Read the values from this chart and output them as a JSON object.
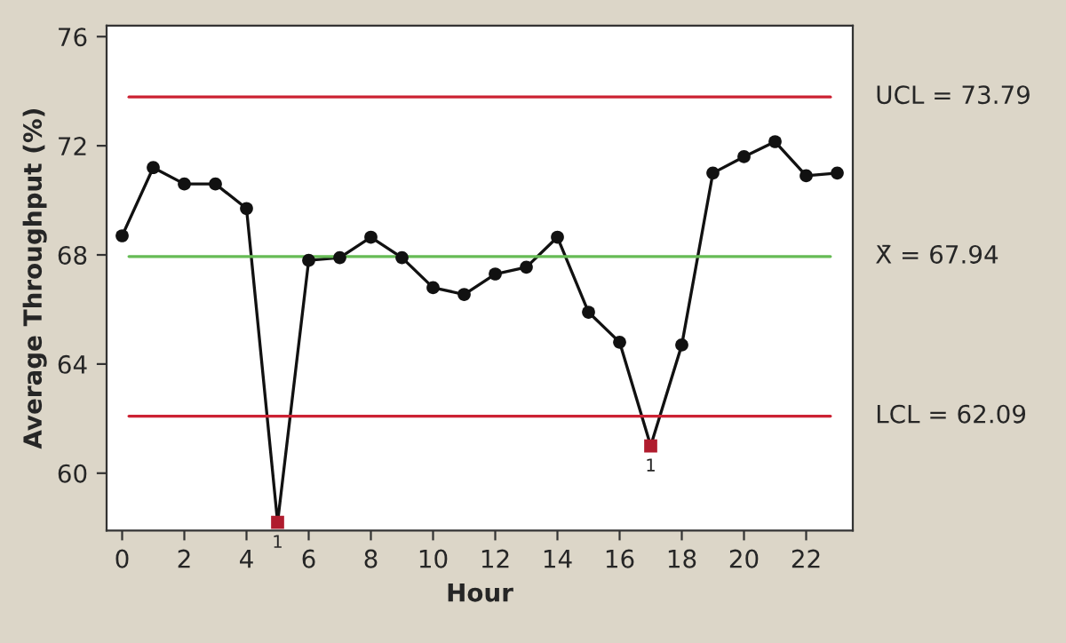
{
  "chart_data": {
    "type": "line",
    "xlabel": "Hour",
    "ylabel": "Average Throughput (%)",
    "x": [
      0,
      1,
      2,
      3,
      4,
      5,
      6,
      7,
      8,
      9,
      10,
      11,
      12,
      13,
      14,
      15,
      16,
      17,
      18,
      19,
      20,
      21,
      22,
      23
    ],
    "series": [
      {
        "color": "#111111",
        "values": [
          68.7,
          71.2,
          70.6,
          70.6,
          69.7,
          58.2,
          67.8,
          67.9,
          68.65,
          67.9,
          66.8,
          66.55,
          67.3,
          67.55,
          68.65,
          65.9,
          64.8,
          61.0,
          64.7,
          71.0,
          71.6,
          72.15,
          70.9,
          71.0
        ],
        "colors": [
          "#111111",
          "#111111",
          "#111111",
          "#111111",
          "#111111",
          "#b01c2e",
          "#111111",
          "#111111",
          "#111111",
          "#111111",
          "#111111",
          "#111111",
          "#111111",
          "#111111",
          "#111111",
          "#111111",
          "#111111",
          "#b01c2e",
          "#111111",
          "#111111",
          "#111111",
          "#111111",
          "#111111",
          "#111111"
        ]
      }
    ],
    "ref_lines": [
      {
        "axis": "y",
        "value": 73.79,
        "label": "UCL = 73.79",
        "color": "#cc2233"
      },
      {
        "axis": "y",
        "value": 67.94,
        "label": "X̄ = 67.94",
        "color": "#66bb55"
      },
      {
        "axis": "y",
        "value": 62.09,
        "label": "LCL = 62.09",
        "color": "#cc2233"
      }
    ],
    "annotations": [
      {
        "text": "1",
        "x": 5,
        "y": 58.2
      },
      {
        "text": "1",
        "x": 17,
        "y": 61.0
      }
    ],
    "xlim": [
      -0.5,
      23.5
    ],
    "ylim": [
      57.9,
      76.4
    ],
    "xticks": [
      0,
      2,
      4,
      6,
      8,
      10,
      12,
      14,
      16,
      18,
      20,
      22
    ],
    "yticks": [
      60,
      64,
      68,
      72,
      76
    ],
    "marker": "circle",
    "line_style": "solid",
    "grid": false,
    "legend": false
  }
}
